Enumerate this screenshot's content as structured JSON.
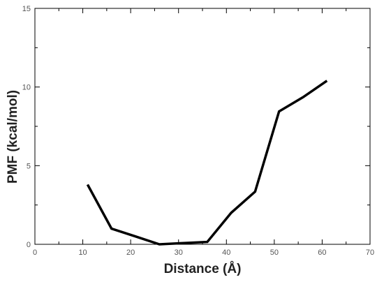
{
  "chart_data": {
    "type": "line",
    "title": "",
    "xlabel": "Distance (Å)",
    "ylabel": "PMF (kcal/mol)",
    "xlim": [
      0,
      70
    ],
    "ylim": [
      0,
      15
    ],
    "x_ticks": [
      0,
      10,
      20,
      30,
      40,
      50,
      60,
      70
    ],
    "y_ticks": [
      0,
      5,
      10,
      15
    ],
    "grid": false,
    "series": [
      {
        "x": [
          11,
          16,
          21,
          26,
          31,
          36,
          41,
          46,
          51,
          56,
          61
        ],
        "y": [
          3.8,
          1.0,
          0.5,
          0.0,
          0.08,
          0.15,
          2.0,
          3.35,
          8.45,
          9.35,
          10.4
        ],
        "color": "#000000"
      }
    ]
  }
}
